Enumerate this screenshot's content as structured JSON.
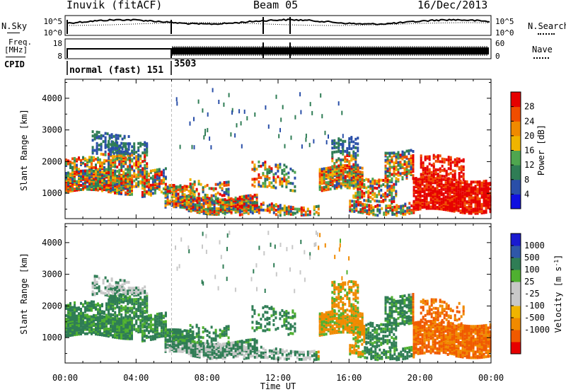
{
  "header": {
    "station": "Inuvik (fitACF)",
    "beam": "Beam 05",
    "date": "16/Dec/2013"
  },
  "top_panels": {
    "nsky_label": "N.Sky",
    "nsearch_label": "N.Search",
    "noise_ticks": [
      "10^5",
      "10^0"
    ],
    "freq_label": "Freq.",
    "freq_unit": "[MHz]",
    "freq_ticks": [
      "18",
      "8"
    ],
    "nave_label": "Nave",
    "nave_ticks": [
      "60",
      "0"
    ],
    "cpid_label": "CPID",
    "cpid_segments": [
      {
        "label": "normal (fast) 151",
        "start_hour": 0,
        "end_hour": 6
      },
      {
        "label": "3503",
        "start_hour": 6,
        "end_hour": 24
      }
    ]
  },
  "colors": {
    "power": [
      "#1010e0",
      "#2a4fa8",
      "#2f7d55",
      "#4fa64f",
      "#f0b400",
      "#f08a00",
      "#f04d00",
      "#e60000"
    ],
    "velocity": [
      "#e60000",
      "#f05a00",
      "#f08a00",
      "#f0b400",
      "#c8c8c8",
      "#c8c8c8",
      "#4fb030",
      "#2f7d55",
      "#2f57a8",
      "#1a1ad0"
    ]
  },
  "chart_data": [
    {
      "type": "heatmap",
      "panel": "power",
      "ylabel": "Slant Range [km]",
      "y_ticks": [
        1000,
        2000,
        3000,
        4000
      ],
      "ylim": [
        200,
        4600
      ],
      "xlim": [
        0,
        24
      ],
      "colorbar_label": "Power [dB]",
      "colorbar_ticks": [
        "4",
        "8",
        "12",
        "16",
        "20",
        "24",
        "28"
      ],
      "colorbar_range": [
        0,
        32
      ]
    },
    {
      "type": "heatmap",
      "panel": "velocity",
      "xlabel": "Time UT",
      "ylabel": "Slant Range [km]",
      "y_ticks": [
        1000,
        2000,
        3000,
        4000
      ],
      "ylim": [
        200,
        4600
      ],
      "xlim": [
        0,
        24
      ],
      "x_tick_labels": [
        "00:00",
        "04:00",
        "08:00",
        "12:00",
        "16:00",
        "20:00",
        "00:00"
      ],
      "colorbar_label": "Velocity [m s",
      "colorbar_label_sup": "-1",
      "colorbar_ticks": [
        "1000",
        "500",
        "100",
        "25",
        "-25",
        "-100",
        "-500",
        "-1000"
      ]
    }
  ]
}
